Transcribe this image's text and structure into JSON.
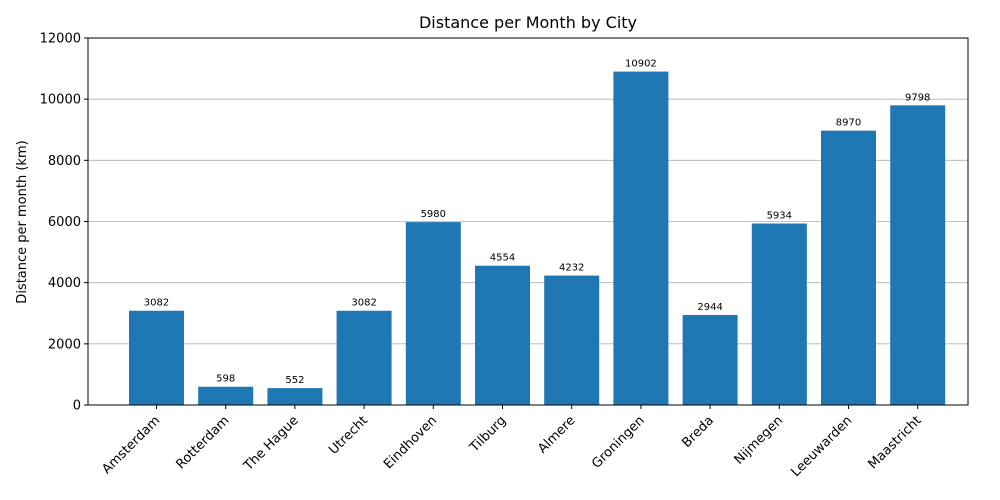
{
  "chart_data": {
    "type": "bar",
    "title": "Distance per Month by City",
    "xlabel": "",
    "ylabel": "Distance per month (km)",
    "ylim": [
      0,
      12000
    ],
    "yticks": [
      0,
      2000,
      4000,
      6000,
      8000,
      10000,
      12000
    ],
    "grid": "y",
    "bar_color": "#1f77b4",
    "categories": [
      "Amsterdam",
      "Rotterdam",
      "The Hague",
      "Utrecht",
      "Eindhoven",
      "Tilburg",
      "Almere",
      "Groningen",
      "Breda",
      "Nijmegen",
      "Leeuwarden",
      "Maastricht"
    ],
    "values": [
      3082,
      598,
      552,
      3082,
      5980,
      4554,
      4232,
      10902,
      2944,
      5934,
      8970,
      9798
    ]
  }
}
